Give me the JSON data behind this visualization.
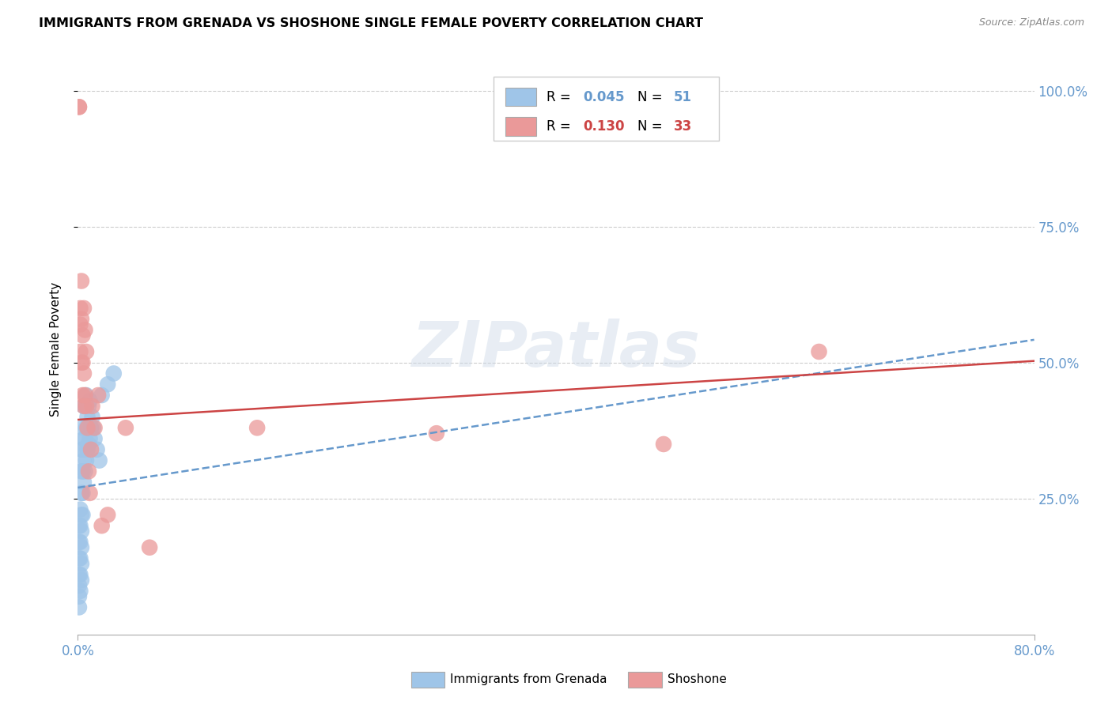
{
  "title": "IMMIGRANTS FROM GRENADA VS SHOSHONE SINGLE FEMALE POVERTY CORRELATION CHART",
  "source": "Source: ZipAtlas.com",
  "ylabel": "Single Female Poverty",
  "xlim": [
    0.0,
    0.8
  ],
  "ylim": [
    0.0,
    1.05
  ],
  "xtick_vals": [
    0.0,
    0.8
  ],
  "xtick_labels": [
    "0.0%",
    "80.0%"
  ],
  "ytick_vals": [
    0.25,
    0.5,
    0.75,
    1.0
  ],
  "ytick_labels": [
    "25.0%",
    "50.0%",
    "75.0%",
    "100.0%"
  ],
  "color_blue": "#9fc5e8",
  "color_pink": "#ea9999",
  "line_blue_color": "#6699cc",
  "line_pink_color": "#cc4444",
  "tick_color": "#6699cc",
  "r_blue": "0.045",
  "n_blue": "51",
  "r_pink": "0.130",
  "n_pink": "33",
  "legend_label_blue": "Immigrants from Grenada",
  "legend_label_pink": "Shoshone",
  "watermark": "ZIPatlas",
  "blue_line_int": 0.27,
  "blue_line_slp": 0.34,
  "pink_line_int": 0.395,
  "pink_line_slp": 0.135,
  "blue_x": [
    0.001,
    0.001,
    0.001,
    0.001,
    0.001,
    0.001,
    0.001,
    0.002,
    0.002,
    0.002,
    0.002,
    0.002,
    0.002,
    0.003,
    0.003,
    0.003,
    0.003,
    0.003,
    0.003,
    0.003,
    0.003,
    0.004,
    0.004,
    0.004,
    0.004,
    0.004,
    0.005,
    0.005,
    0.005,
    0.005,
    0.006,
    0.006,
    0.006,
    0.007,
    0.007,
    0.007,
    0.008,
    0.008,
    0.009,
    0.009,
    0.01,
    0.01,
    0.011,
    0.012,
    0.013,
    0.014,
    0.016,
    0.018,
    0.02,
    0.025,
    0.03
  ],
  "blue_y": [
    0.05,
    0.07,
    0.09,
    0.11,
    0.14,
    0.17,
    0.2,
    0.08,
    0.11,
    0.14,
    0.17,
    0.2,
    0.23,
    0.1,
    0.13,
    0.16,
    0.19,
    0.22,
    0.26,
    0.3,
    0.34,
    0.22,
    0.26,
    0.3,
    0.34,
    0.38,
    0.28,
    0.32,
    0.36,
    0.42,
    0.3,
    0.36,
    0.42,
    0.32,
    0.38,
    0.44,
    0.34,
    0.4,
    0.35,
    0.42,
    0.36,
    0.43,
    0.38,
    0.4,
    0.38,
    0.36,
    0.34,
    0.32,
    0.44,
    0.46,
    0.48
  ],
  "pink_x": [
    0.001,
    0.001,
    0.002,
    0.002,
    0.002,
    0.003,
    0.003,
    0.003,
    0.004,
    0.004,
    0.004,
    0.005,
    0.005,
    0.005,
    0.006,
    0.006,
    0.007,
    0.007,
    0.008,
    0.009,
    0.01,
    0.011,
    0.012,
    0.014,
    0.017,
    0.02,
    0.025,
    0.04,
    0.06,
    0.15,
    0.3,
    0.49,
    0.62
  ],
  "pink_y": [
    0.97,
    0.97,
    0.6,
    0.57,
    0.52,
    0.65,
    0.58,
    0.5,
    0.55,
    0.5,
    0.44,
    0.42,
    0.6,
    0.48,
    0.56,
    0.44,
    0.42,
    0.52,
    0.38,
    0.3,
    0.26,
    0.34,
    0.42,
    0.38,
    0.44,
    0.2,
    0.22,
    0.38,
    0.16,
    0.38,
    0.37,
    0.35,
    0.52
  ]
}
